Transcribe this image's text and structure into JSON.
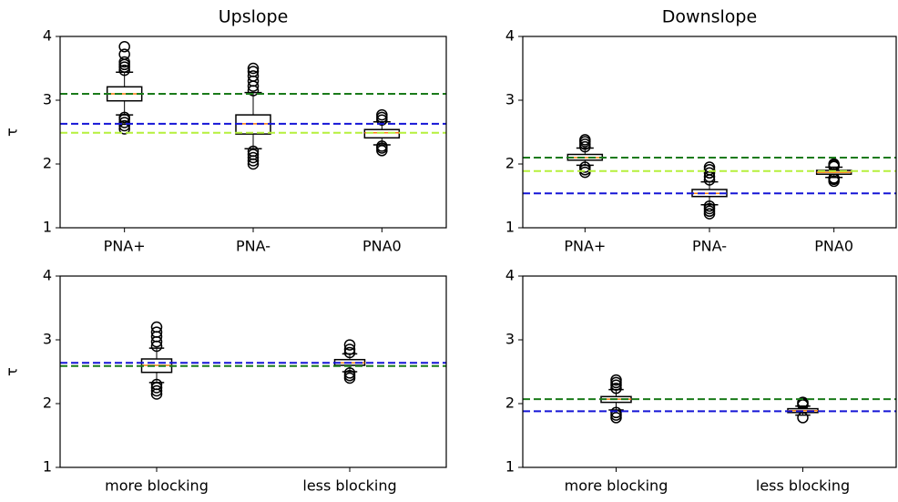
{
  "chart_data": [
    {
      "type": "box",
      "title": "Upslope",
      "ylabel": "τ",
      "categories": [
        "PNA+",
        "PNA-",
        "PNA0"
      ],
      "boxes": [
        {
          "whislo": 2.77,
          "q1": 2.99,
          "med": 3.1,
          "q3": 3.21,
          "whishi": 3.44,
          "fliers": [
            2.55,
            2.6,
            2.65,
            2.7,
            2.73,
            3.47,
            3.52,
            3.56,
            3.6,
            3.72,
            3.84
          ]
        },
        {
          "whislo": 2.24,
          "q1": 2.47,
          "med": 2.63,
          "q3": 2.77,
          "whishi": 3.12,
          "fliers": [
            2.0,
            2.05,
            2.1,
            2.15,
            2.2,
            3.15,
            3.22,
            3.3,
            3.38,
            3.45,
            3.5
          ]
        },
        {
          "whislo": 2.3,
          "q1": 2.41,
          "med": 2.49,
          "q3": 2.54,
          "whishi": 2.66,
          "fliers": [
            2.21,
            2.25,
            2.28,
            2.69,
            2.73,
            2.77
          ]
        }
      ],
      "hlines": [
        {
          "value": 3.1,
          "color": "#1a7a1a"
        },
        {
          "value": 2.63,
          "color": "#1515d6"
        },
        {
          "value": 2.49,
          "color": "#b5f03c"
        }
      ],
      "ylim": [
        1,
        4
      ],
      "yticks": [
        1,
        2,
        3,
        4
      ],
      "box_color": "#000000",
      "median_color": "#ff7f0e"
    },
    {
      "type": "box",
      "title": "Downslope",
      "categories": [
        "PNA+",
        "PNA-",
        "PNA0"
      ],
      "boxes": [
        {
          "whislo": 1.98,
          "q1": 2.06,
          "med": 2.1,
          "q3": 2.15,
          "whishi": 2.25,
          "fliers": [
            1.87,
            1.91,
            1.95,
            2.27,
            2.31,
            2.35,
            2.38
          ]
        },
        {
          "whislo": 1.36,
          "q1": 1.49,
          "med": 1.54,
          "q3": 1.6,
          "whishi": 1.72,
          "fliers": [
            1.22,
            1.26,
            1.3,
            1.34,
            1.75,
            1.8,
            1.86,
            1.91,
            1.95
          ]
        },
        {
          "whislo": 1.79,
          "q1": 1.84,
          "med": 1.87,
          "q3": 1.9,
          "whishi": 1.95,
          "fliers": [
            1.73,
            1.76,
            1.78,
            1.96,
            1.98,
            2.0
          ]
        }
      ],
      "hlines": [
        {
          "value": 2.1,
          "color": "#1a7a1a"
        },
        {
          "value": 1.89,
          "color": "#b5f03c"
        },
        {
          "value": 1.54,
          "color": "#1515d6"
        }
      ],
      "ylim": [
        1,
        4
      ],
      "yticks": [
        1,
        2,
        3,
        4
      ],
      "box_color": "#000000",
      "median_color": "#ff7f0e"
    },
    {
      "type": "box",
      "ylabel": "τ",
      "categories": [
        "more blocking",
        "less blocking"
      ],
      "boxes": [
        {
          "whislo": 2.33,
          "q1": 2.49,
          "med": 2.6,
          "q3": 2.7,
          "whishi": 2.87,
          "fliers": [
            2.15,
            2.2,
            2.25,
            2.3,
            2.9,
            2.97,
            3.05,
            3.12,
            3.2
          ]
        },
        {
          "whislo": 2.5,
          "q1": 2.6,
          "med": 2.64,
          "q3": 2.69,
          "whishi": 2.78,
          "fliers": [
            2.4,
            2.44,
            2.48,
            2.8,
            2.85,
            2.92
          ]
        }
      ],
      "hlines": [
        {
          "value": 2.64,
          "color": "#1515d6"
        },
        {
          "value": 2.59,
          "color": "#1a7a1a"
        }
      ],
      "ylim": [
        1,
        4
      ],
      "yticks": [
        1,
        2,
        3,
        4
      ],
      "box_color": "#000000",
      "median_color": "#ff7f0e"
    },
    {
      "type": "box",
      "categories": [
        "more blocking",
        "less blocking"
      ],
      "boxes": [
        {
          "whislo": 1.9,
          "q1": 2.02,
          "med": 2.07,
          "q3": 2.11,
          "whishi": 2.22,
          "fliers": [
            1.78,
            1.82,
            1.86,
            2.24,
            2.29,
            2.33,
            2.37
          ]
        },
        {
          "whislo": 1.82,
          "q1": 1.86,
          "med": 1.89,
          "q3": 1.92,
          "whishi": 1.96,
          "fliers": [
            1.78,
            1.98,
            2.0,
            2.02
          ]
        }
      ],
      "hlines": [
        {
          "value": 2.07,
          "color": "#1a7a1a"
        },
        {
          "value": 1.88,
          "color": "#1515d6"
        }
      ],
      "ylim": [
        1,
        4
      ],
      "yticks": [
        1,
        2,
        3,
        4
      ],
      "box_color": "#000000",
      "median_color": "#ff7f0e"
    }
  ]
}
